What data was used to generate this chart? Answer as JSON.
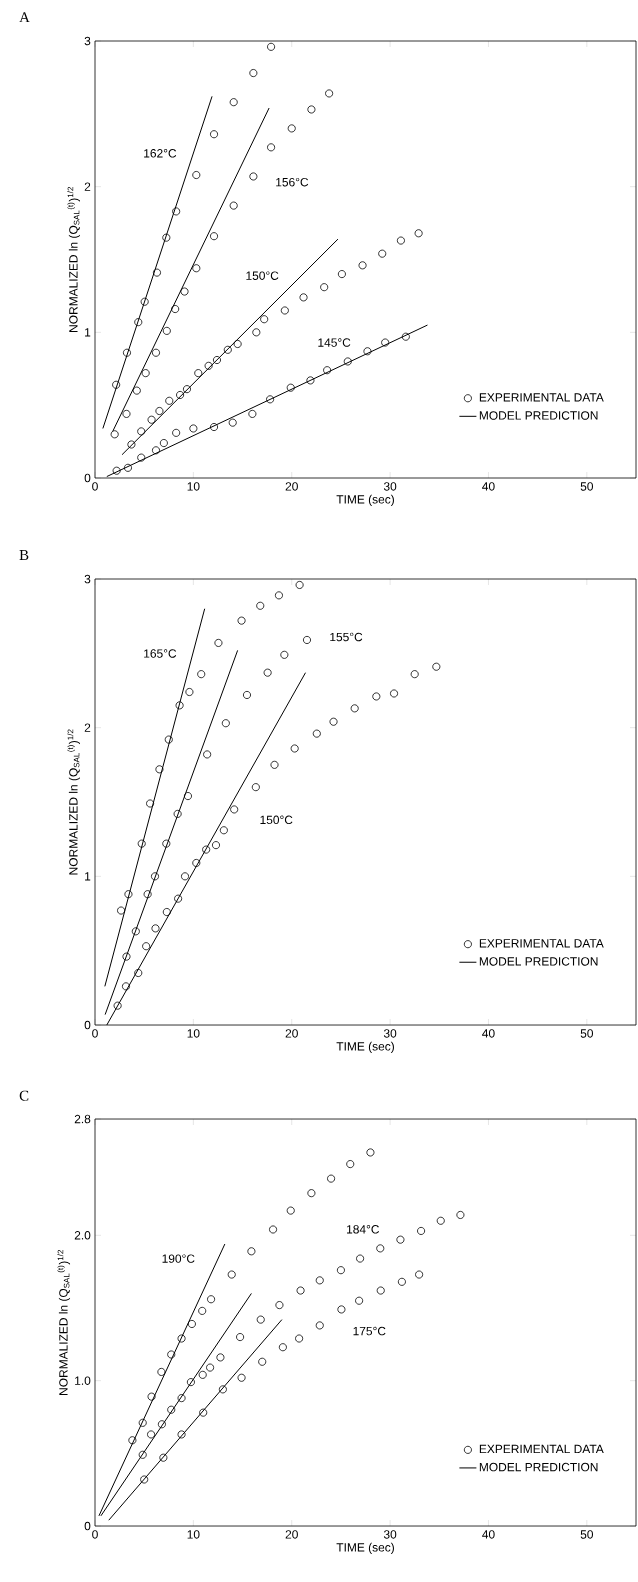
{
  "chart_data": [
    {
      "type": "scatter",
      "title": "A",
      "xlabel": "TIME (sec)",
      "ylabel": "NORMALIZED ln (Q$_{SAL}$$^{(t)}$)$^{1/2}$",
      "xlim": [
        0,
        55
      ],
      "ylim": [
        0,
        3
      ],
      "xticks": [
        0,
        10,
        20,
        30,
        40,
        50
      ],
      "yticks": [
        0,
        1,
        2,
        3
      ],
      "legend": "bottom right",
      "series": [
        {
          "name": "EXPERIMENTAL DATA",
          "color": "#000000",
          "marker": "circle",
          "x": [
            2.15,
            3.25,
            4.4,
            5.05,
            6.3,
            7.25,
            8.25,
            10.3,
            12.1,
            14.1,
            16.1,
            17.9,
            2.0,
            3.2,
            4.25,
            5.15,
            6.2,
            7.3,
            8.15,
            9.1,
            10.3,
            12.1,
            14.1,
            16.1,
            17.9,
            20.0,
            22.0,
            23.8,
            3.7,
            4.7,
            5.75,
            6.55,
            7.55,
            8.65,
            9.35,
            10.5,
            11.55,
            12.4,
            13.5,
            14.5,
            16.4,
            17.2,
            19.3,
            21.2,
            23.3,
            25.1,
            27.2,
            29.2,
            31.1,
            32.9,
            2.2,
            3.35,
            4.7,
            6.2,
            7.0,
            8.25,
            10.0,
            12.1,
            14.0,
            16.0,
            17.8,
            19.9,
            21.9,
            23.6,
            25.7,
            27.7,
            29.5,
            31.6
          ],
          "values": [
            0.64,
            0.86,
            1.07,
            1.21,
            1.41,
            1.65,
            1.83,
            2.08,
            2.36,
            2.58,
            2.78,
            2.96,
            0.3,
            0.44,
            0.6,
            0.72,
            0.86,
            1.01,
            1.16,
            1.28,
            1.44,
            1.66,
            1.87,
            2.07,
            2.27,
            2.4,
            2.53,
            2.64,
            0.23,
            0.32,
            0.4,
            0.46,
            0.53,
            0.57,
            0.61,
            0.72,
            0.77,
            0.81,
            0.88,
            0.92,
            1.0,
            1.09,
            1.15,
            1.24,
            1.31,
            1.4,
            1.46,
            1.54,
            1.63,
            1.68,
            0.05,
            0.07,
            0.14,
            0.19,
            0.24,
            0.31,
            0.34,
            0.35,
            0.38,
            0.44,
            0.54,
            0.62,
            0.67,
            0.74,
            0.8,
            0.87,
            0.93,
            0.97
          ]
        },
        {
          "name": "MODEL PREDICTION",
          "type": "line",
          "color": "#000000",
          "marker": "none",
          "line_style": "solid",
          "x": [
            0.8,
            11.9,
            null,
            1.8,
            17.7,
            null,
            2.75,
            24.7,
            null,
            1.2,
            33.8
          ],
          "values": [
            0.34,
            2.62,
            null,
            0.32,
            2.54,
            null,
            0.16,
            1.64,
            null,
            0.01,
            1.05
          ]
        }
      ],
      "annotations": [
        "162°C",
        "156°C",
        "150°C",
        "145°C"
      ]
    },
    {
      "type": "scatter",
      "title": "B",
      "xlabel": "TIME (sec)",
      "ylabel": "NORMALIZED ln (Q$_{SAL}$$^{(t)}$)$^{1/2}$",
      "xlim": [
        0,
        55
      ],
      "ylim": [
        0,
        3
      ],
      "xticks": [
        0,
        10,
        20,
        30,
        40,
        50
      ],
      "yticks": [
        0,
        1,
        2,
        3
      ],
      "legend": "bottom right",
      "series": [
        {
          "name": "EXPERIMENTAL DATA",
          "color": "#000000",
          "marker": "circle",
          "x": [
            2.65,
            3.4,
            4.75,
            5.6,
            6.55,
            7.5,
            8.6,
            9.6,
            10.8,
            12.55,
            14.9,
            16.8,
            18.7,
            20.8,
            3.2,
            4.15,
            5.35,
            6.1,
            7.25,
            8.4,
            9.45,
            11.4,
            13.3,
            15.45,
            17.55,
            19.25,
            21.55,
            2.3,
            3.15,
            4.4,
            5.2,
            6.15,
            7.3,
            8.45,
            9.15,
            10.3,
            11.3,
            12.3,
            13.1,
            14.15,
            16.35,
            18.25,
            20.3,
            22.55,
            24.25,
            26.4,
            28.6,
            30.4,
            32.5,
            34.7
          ],
          "values": [
            0.77,
            0.88,
            1.22,
            1.49,
            1.72,
            1.92,
            2.15,
            2.24,
            2.36,
            2.57,
            2.72,
            2.82,
            2.89,
            2.96,
            0.46,
            0.63,
            0.88,
            1.0,
            1.22,
            1.42,
            1.54,
            1.82,
            2.03,
            2.22,
            2.37,
            2.49,
            2.59,
            0.13,
            0.26,
            0.35,
            0.53,
            0.65,
            0.76,
            0.85,
            1.0,
            1.09,
            1.18,
            1.21,
            1.31,
            1.45,
            1.6,
            1.75,
            1.86,
            1.96,
            2.04,
            2.13,
            2.21,
            2.23,
            2.36,
            2.41
          ]
        },
        {
          "name": "MODEL PREDICTION",
          "type": "line",
          "color": "#000000",
          "marker": "none",
          "line_style": "solid",
          "x": [
            1.0,
            11.15,
            null,
            1.03,
            14.5,
            null,
            1.2,
            21.4
          ],
          "values": [
            0.26,
            2.8,
            null,
            0.07,
            2.52,
            null,
            0.0,
            2.37
          ]
        }
      ],
      "annotations": [
        "165°C",
        "155°C",
        "150°C"
      ]
    },
    {
      "type": "scatter",
      "title": "C",
      "xlabel": "TIME (sec)",
      "ylabel": "NORMALIZED ln (Q$_{SAL}$$^{(t)}$)$^{1/2}$",
      "xlim": [
        0,
        55
      ],
      "ylim": [
        0,
        2.8
      ],
      "xticks": [
        0,
        10,
        20,
        30,
        40,
        50
      ],
      "yticks": [
        0,
        {
          "value": 1,
          "label": "1.0"
        },
        {
          "value": 2,
          "label": "2.0"
        },
        2.8
      ],
      "legend": "bottom right",
      "series": [
        {
          "name": "EXPERIMENTAL DATA",
          "color": "#000000",
          "marker": "circle",
          "x": [
            3.8,
            4.85,
            5.75,
            6.75,
            7.75,
            8.8,
            9.85,
            10.9,
            11.8,
            13.9,
            15.9,
            18.1,
            19.9,
            22.0,
            24.0,
            25.95,
            28.0,
            4.85,
            5.7,
            6.8,
            7.75,
            8.8,
            9.75,
            10.95,
            11.7,
            12.75,
            14.75,
            16.85,
            18.75,
            20.9,
            22.85,
            25.0,
            26.95,
            29.0,
            31.05,
            33.15,
            35.15,
            37.15,
            5.0,
            6.95,
            8.8,
            11.0,
            13.0,
            14.9,
            17.0,
            19.1,
            20.75,
            22.85,
            25.05,
            26.85,
            29.05,
            31.2,
            32.95
          ],
          "values": [
            0.59,
            0.71,
            0.89,
            1.06,
            1.18,
            1.29,
            1.39,
            1.48,
            1.56,
            1.73,
            1.89,
            2.04,
            2.17,
            2.29,
            2.39,
            2.49,
            2.57,
            0.49,
            0.63,
            0.7,
            0.8,
            0.88,
            0.99,
            1.04,
            1.09,
            1.16,
            1.3,
            1.42,
            1.52,
            1.62,
            1.69,
            1.76,
            1.84,
            1.91,
            1.97,
            2.03,
            2.1,
            2.14,
            0.32,
            0.47,
            0.63,
            0.78,
            0.94,
            1.02,
            1.13,
            1.23,
            1.29,
            1.38,
            1.49,
            1.55,
            1.62,
            1.68,
            1.73
          ]
        },
        {
          "name": "MODEL PREDICTION",
          "type": "line",
          "color": "#000000",
          "marker": "none",
          "line_style": "solid",
          "x": [
            0.4,
            13.2,
            null,
            0.6,
            15.9,
            null,
            1.4,
            19.0
          ],
          "values": [
            0.07,
            1.94,
            null,
            0.07,
            1.6,
            null,
            0.04,
            1.42
          ]
        }
      ],
      "annotations": [
        "190°C",
        "184°C",
        "175°C"
      ]
    }
  ]
}
